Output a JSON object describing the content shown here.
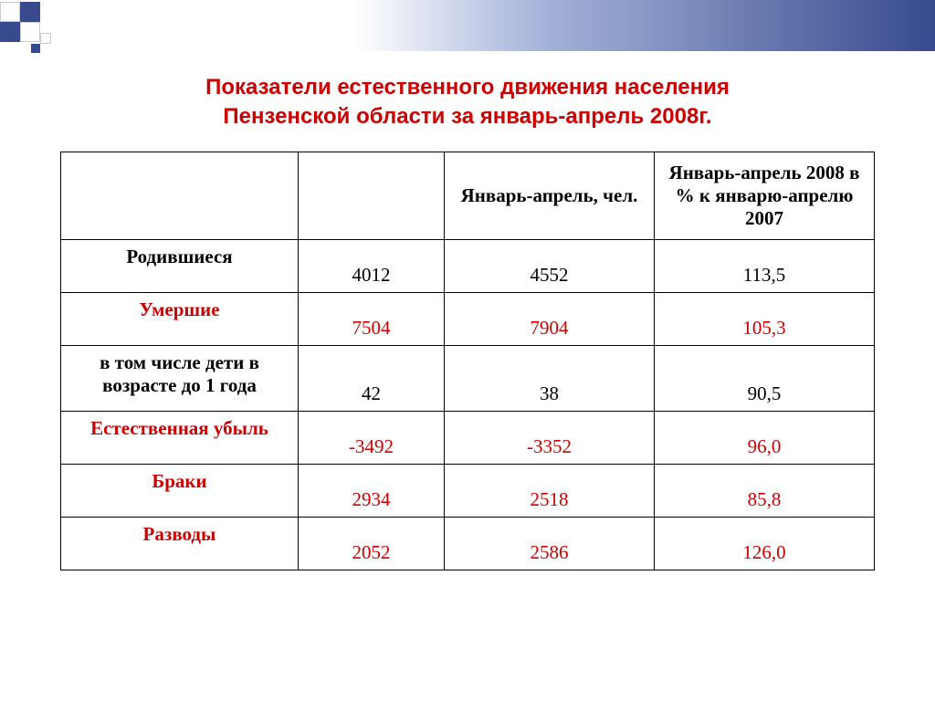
{
  "title_line1": "Показатели естественного движения населения",
  "title_line2": "Пензенской области за январь-апрель 2008г.",
  "colors": {
    "title": "#cc0000",
    "row_label_red": "#cc0000",
    "value_red": "#cc0000",
    "border": "#000000",
    "banner_dark": "#374a8d",
    "banner_light": "#a5b3d9"
  },
  "table": {
    "headers": {
      "col1": "",
      "col2": "",
      "col3": "Январь-апрель, чел.",
      "col4": "Январь-апрель 2008 в % к январю-апрелю 2007"
    },
    "rows": [
      {
        "label": "Родившиеся",
        "label_color": "black",
        "v1": "4012",
        "v2": "4552",
        "v3": "113,5",
        "val_color": "black",
        "tall": false
      },
      {
        "label": "Умершие",
        "label_color": "red",
        "v1": "7504",
        "v2": "7904",
        "v3": "105,3",
        "val_color": "red",
        "tall": false
      },
      {
        "label": "в том числе дети в возрасте до 1 года",
        "label_color": "black",
        "v1": "42",
        "v2": "38",
        "v3": "90,5",
        "val_color": "black",
        "tall": true
      },
      {
        "label": "Естественная убыль",
        "label_color": "red",
        "v1": "-3492",
        "v2": "-3352",
        "v3": "96,0",
        "val_color": "red",
        "tall": false
      },
      {
        "label": "Браки",
        "label_color": "red",
        "v1": "2934",
        "v2": "2518",
        "v3": "85,8",
        "val_color": "red",
        "tall": false
      },
      {
        "label": "Разводы",
        "label_color": "red",
        "v1": "2052",
        "v2": "2586",
        "v3": "126,0",
        "val_color": "red",
        "tall": false
      }
    ]
  }
}
